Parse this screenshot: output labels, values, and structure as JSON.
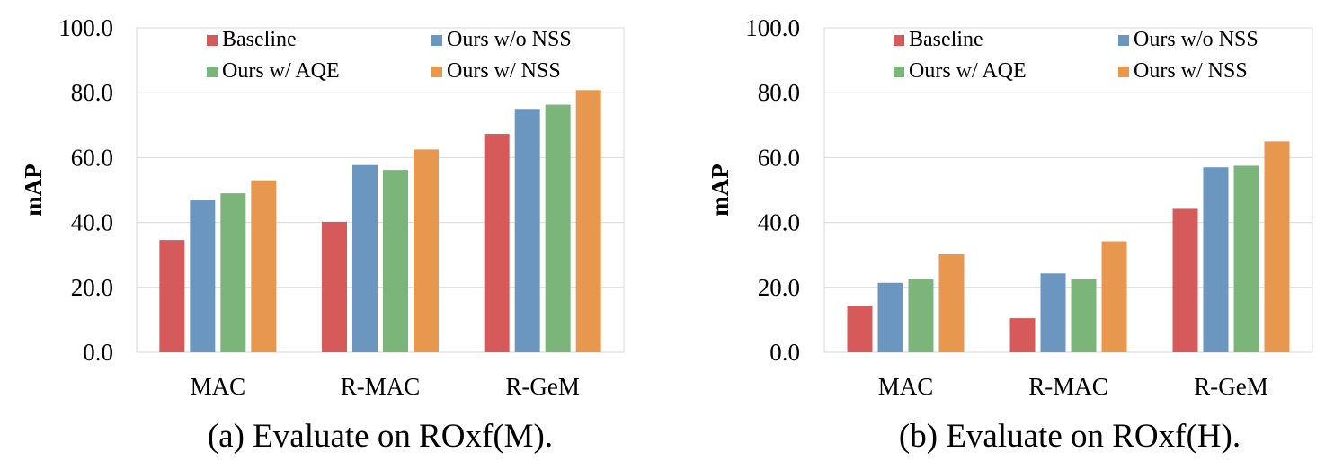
{
  "chart_data": [
    {
      "type": "bar",
      "caption": "(a) Evaluate on ROxf(M).",
      "ylabel": "mAP",
      "xlabel": "",
      "ylim": [
        0,
        100
      ],
      "yticks": [
        "0.0",
        "20.0",
        "40.0",
        "60.0",
        "80.0",
        "100.0"
      ],
      "grid": true,
      "legend_position": "top",
      "categories": [
        "MAC",
        "R-MAC",
        "R-GeM"
      ],
      "series": [
        {
          "name": "Baseline",
          "color": "#d65a5a",
          "values": [
            34.6,
            40.2,
            67.3
          ]
        },
        {
          "name": "Ours w/o NSS",
          "color": "#6b96c0",
          "values": [
            47.0,
            57.7,
            75.0
          ]
        },
        {
          "name": "Ours w/ AQE",
          "color": "#7cb57a",
          "values": [
            49.0,
            56.2,
            76.3
          ]
        },
        {
          "name": "Ours w/ NSS",
          "color": "#e8974e",
          "values": [
            53.0,
            62.5,
            80.8
          ]
        }
      ]
    },
    {
      "type": "bar",
      "caption": "(b) Evaluate on ROxf(H).",
      "ylabel": "mAP",
      "xlabel": "",
      "ylim": [
        0,
        100
      ],
      "yticks": [
        "0.0",
        "20.0",
        "40.0",
        "60.0",
        "80.0",
        "100.0"
      ],
      "grid": true,
      "legend_position": "top",
      "categories": [
        "MAC",
        "R-MAC",
        "R-GeM"
      ],
      "series": [
        {
          "name": "Baseline",
          "color": "#d65a5a",
          "values": [
            14.3,
            10.5,
            44.2
          ]
        },
        {
          "name": "Ours w/o NSS",
          "color": "#6b96c0",
          "values": [
            21.4,
            24.3,
            57.0
          ]
        },
        {
          "name": "Ours w/ AQE",
          "color": "#7cb57a",
          "values": [
            22.6,
            22.5,
            57.5
          ]
        },
        {
          "name": "Ours w/ NSS",
          "color": "#e8974e",
          "values": [
            30.2,
            34.2,
            65.0
          ]
        }
      ]
    }
  ]
}
